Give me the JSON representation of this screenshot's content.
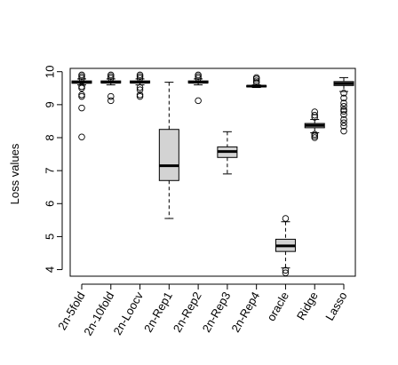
{
  "chart_data": {
    "type": "boxplot",
    "ylabel": "Loss values",
    "xlabel": "",
    "ylim": [
      3.8,
      10.1
    ],
    "yticks": [
      4,
      5,
      6,
      7,
      8,
      9,
      10
    ],
    "categories": [
      "2n-5fold",
      "2n-10fold",
      "2n-Loocv",
      "2n-Rep1",
      "2n-Rep2",
      "2n-Rep3",
      "2n-Rep4",
      "oracle",
      "Ridge",
      "Lasso"
    ],
    "box_fill": "#d3d3d3",
    "boxes": [
      {
        "name": "2n-5fold",
        "whisker_low": 9.6,
        "q1": 9.65,
        "median": 9.68,
        "q3": 9.72,
        "whisker_high": 9.78,
        "outliers": [
          9.9,
          9.85,
          9.8,
          9.55,
          9.5,
          9.3,
          9.25,
          8.9,
          8.02
        ]
      },
      {
        "name": "2n-10fold",
        "whisker_low": 9.6,
        "q1": 9.66,
        "median": 9.68,
        "q3": 9.72,
        "whisker_high": 9.78,
        "outliers": [
          9.9,
          9.85,
          9.8,
          9.25,
          9.12
        ]
      },
      {
        "name": "2n-Loocv",
        "whisker_low": 9.6,
        "q1": 9.66,
        "median": 9.68,
        "q3": 9.72,
        "whisker_high": 9.78,
        "outliers": [
          9.9,
          9.85,
          9.8,
          9.52,
          9.45,
          9.3,
          9.25
        ]
      },
      {
        "name": "2n-Rep1",
        "whisker_low": 5.55,
        "q1": 6.7,
        "median": 7.15,
        "q3": 8.25,
        "whisker_high": 9.68,
        "outliers": []
      },
      {
        "name": "2n-Rep2",
        "whisker_low": 9.6,
        "q1": 9.66,
        "median": 9.68,
        "q3": 9.72,
        "whisker_high": 9.78,
        "outliers": [
          9.9,
          9.85,
          9.8,
          9.12
        ]
      },
      {
        "name": "2n-Rep3",
        "whisker_low": 6.9,
        "q1": 7.4,
        "median": 7.58,
        "q3": 7.72,
        "whisker_high": 8.18,
        "outliers": []
      },
      {
        "name": "2n-Rep4",
        "whisker_low": 9.52,
        "q1": 9.54,
        "median": 9.56,
        "q3": 9.58,
        "whisker_high": 9.6,
        "outliers": [
          9.82,
          9.78,
          9.72,
          9.67
        ]
      },
      {
        "name": "oracle",
        "whisker_low": 4.05,
        "q1": 4.55,
        "median": 4.72,
        "q3": 4.92,
        "whisker_high": 5.45,
        "outliers": [
          5.55,
          3.98,
          3.9
        ]
      },
      {
        "name": "Ridge",
        "whisker_low": 8.15,
        "q1": 8.3,
        "median": 8.37,
        "q3": 8.43,
        "whisker_high": 8.55,
        "outliers": [
          8.78,
          8.68,
          8.62,
          8.1,
          8.05,
          8.0
        ]
      },
      {
        "name": "Lasso",
        "whisker_low": 9.4,
        "q1": 9.58,
        "median": 9.64,
        "q3": 9.7,
        "whisker_high": 9.82,
        "outliers": [
          9.35,
          9.2,
          9.05,
          8.95,
          8.85,
          8.8,
          8.7,
          8.55,
          8.45,
          8.35,
          8.2
        ]
      }
    ]
  }
}
